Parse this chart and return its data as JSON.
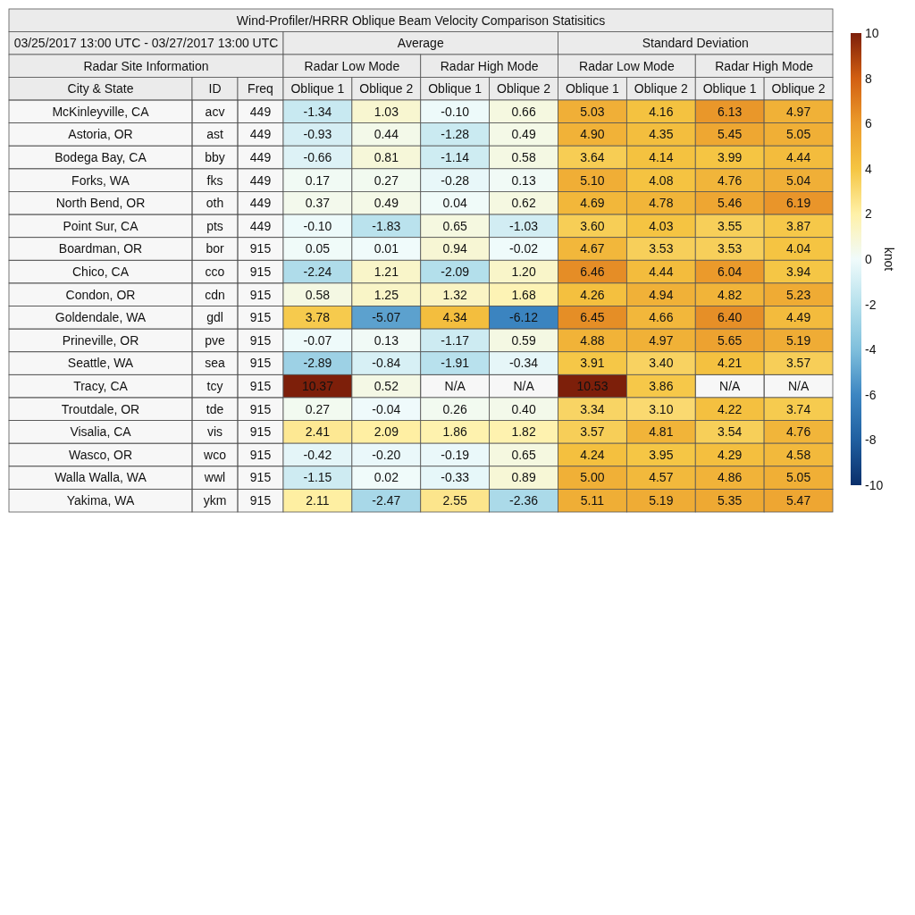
{
  "chart_data": {
    "type": "heatmap",
    "title": "Wind-Profiler/HRRR Oblique Beam Velocity Comparison Statisitics",
    "subtitle": "03/25/2017 13:00 UTC - 03/27/2017 13:00 UTC",
    "annotations": [
      "Radar Site Information",
      "Average",
      "Standard Deviation",
      "Radar Low Mode",
      "Radar High Mode",
      "Radar Low Mode",
      "Radar High Mode",
      "City & State"
    ],
    "categories": [
      "ID",
      "Freq",
      "Oblique 1",
      "Oblique 2",
      "Oblique 1",
      "Oblique 2",
      "Oblique 1",
      "Oblique 2",
      "Oblique 1",
      "Oblique 2"
    ],
    "y_categories": [
      "McKinleyville, CA",
      "Astoria, OR",
      "Bodega Bay, CA",
      "Forks, WA",
      "North Bend, OR",
      "Point Sur, CA",
      "Boardman, OR",
      "Chico, CA",
      "Condon, OR",
      "Goldendale, WA",
      "Prineville, OR",
      "Seattle, WA",
      "Tracy, CA",
      "Troutdale, OR",
      "Visalia, CA",
      "Wasco, OR",
      "Walla Walla, WA",
      "Yakima, WA"
    ],
    "cells": [
      [
        null,
        null,
        -1.34,
        1.03,
        -0.1,
        0.66,
        5.03,
        4.16,
        6.13,
        4.97
      ],
      [
        null,
        null,
        -0.93,
        0.44,
        -1.28,
        0.49,
        4.9,
        4.35,
        5.45,
        5.05
      ],
      [
        null,
        null,
        -0.66,
        0.81,
        -1.14,
        0.58,
        3.64,
        4.14,
        3.99,
        4.44
      ],
      [
        null,
        null,
        0.17,
        0.27,
        -0.28,
        0.13,
        5.1,
        4.08,
        4.76,
        5.04
      ],
      [
        null,
        null,
        0.37,
        0.49,
        0.04,
        0.62,
        4.69,
        4.78,
        5.46,
        6.19
      ],
      [
        null,
        null,
        -0.1,
        -1.83,
        0.65,
        -1.03,
        3.6,
        4.03,
        3.55,
        3.87
      ],
      [
        null,
        null,
        0.05,
        0.01,
        0.94,
        -0.02,
        4.67,
        3.53,
        3.53,
        4.04
      ],
      [
        null,
        null,
        -2.24,
        1.21,
        -2.09,
        1.2,
        6.46,
        4.44,
        6.04,
        3.94
      ],
      [
        null,
        null,
        0.58,
        1.25,
        1.32,
        1.68,
        4.26,
        4.94,
        4.82,
        5.23
      ],
      [
        null,
        null,
        3.78,
        -5.07,
        4.34,
        -6.12,
        6.45,
        4.66,
        6.4,
        4.49
      ],
      [
        null,
        null,
        -0.07,
        0.13,
        -1.17,
        0.59,
        4.88,
        4.97,
        5.65,
        5.19
      ],
      [
        null,
        null,
        -2.89,
        -0.84,
        -1.91,
        -0.34,
        3.91,
        3.4,
        4.21,
        3.57
      ],
      [
        null,
        null,
        10.37,
        0.52,
        null,
        null,
        10.53,
        3.86,
        null,
        null
      ],
      [
        null,
        null,
        0.27,
        -0.04,
        0.26,
        0.4,
        3.34,
        3.1,
        4.22,
        3.74
      ],
      [
        null,
        null,
        2.41,
        2.09,
        1.86,
        1.82,
        3.57,
        4.81,
        3.54,
        4.76
      ],
      [
        null,
        null,
        -0.42,
        -0.2,
        -0.19,
        0.65,
        4.24,
        3.95,
        4.29,
        4.58
      ],
      [
        null,
        null,
        -1.15,
        0.02,
        -0.33,
        0.89,
        5.0,
        4.57,
        4.86,
        5.05
      ],
      [
        null,
        null,
        2.11,
        -2.47,
        2.55,
        -2.36,
        5.11,
        5.19,
        5.35,
        5.47
      ]
    ],
    "cell_labels": [
      [
        "acv",
        "449",
        "-1.34",
        "1.03",
        "-0.10",
        "0.66",
        "5.03",
        "4.16",
        "6.13",
        "4.97"
      ],
      [
        "ast",
        "449",
        "-0.93",
        "0.44",
        "-1.28",
        "0.49",
        "4.90",
        "4.35",
        "5.45",
        "5.05"
      ],
      [
        "bby",
        "449",
        "-0.66",
        "0.81",
        "-1.14",
        "0.58",
        "3.64",
        "4.14",
        "3.99",
        "4.44"
      ],
      [
        "fks",
        "449",
        "0.17",
        "0.27",
        "-0.28",
        "0.13",
        "5.10",
        "4.08",
        "4.76",
        "5.04"
      ],
      [
        "oth",
        "449",
        "0.37",
        "0.49",
        "0.04",
        "0.62",
        "4.69",
        "4.78",
        "5.46",
        "6.19"
      ],
      [
        "pts",
        "449",
        "-0.10",
        "-1.83",
        "0.65",
        "-1.03",
        "3.60",
        "4.03",
        "3.55",
        "3.87"
      ],
      [
        "bor",
        "915",
        "0.05",
        "0.01",
        "0.94",
        "-0.02",
        "4.67",
        "3.53",
        "3.53",
        "4.04"
      ],
      [
        "cco",
        "915",
        "-2.24",
        "1.21",
        "-2.09",
        "1.20",
        "6.46",
        "4.44",
        "6.04",
        "3.94"
      ],
      [
        "cdn",
        "915",
        "0.58",
        "1.25",
        "1.32",
        "1.68",
        "4.26",
        "4.94",
        "4.82",
        "5.23"
      ],
      [
        "gdl",
        "915",
        "3.78",
        "-5.07",
        "4.34",
        "-6.12",
        "6.45",
        "4.66",
        "6.40",
        "4.49"
      ],
      [
        "pve",
        "915",
        "-0.07",
        "0.13",
        "-1.17",
        "0.59",
        "4.88",
        "4.97",
        "5.65",
        "5.19"
      ],
      [
        "sea",
        "915",
        "-2.89",
        "-0.84",
        "-1.91",
        "-0.34",
        "3.91",
        "3.40",
        "4.21",
        "3.57"
      ],
      [
        "tcy",
        "915",
        "10.37",
        "0.52",
        "N/A",
        "N/A",
        "10.53",
        "3.86",
        "N/A",
        "N/A"
      ],
      [
        "tde",
        "915",
        "0.27",
        "-0.04",
        "0.26",
        "0.40",
        "3.34",
        "3.10",
        "4.22",
        "3.74"
      ],
      [
        "vis",
        "915",
        "2.41",
        "2.09",
        "1.86",
        "1.82",
        "3.57",
        "4.81",
        "3.54",
        "4.76"
      ],
      [
        "wco",
        "915",
        "-0.42",
        "-0.20",
        "-0.19",
        "0.65",
        "4.24",
        "3.95",
        "4.29",
        "4.58"
      ],
      [
        "wwl",
        "915",
        "-1.15",
        "0.02",
        "-0.33",
        "0.89",
        "5.00",
        "4.57",
        "4.86",
        "5.05"
      ],
      [
        "ykm",
        "915",
        "2.11",
        "-2.47",
        "2.55",
        "-2.36",
        "5.11",
        "5.19",
        "5.35",
        "5.47"
      ]
    ],
    "clabel": "knot",
    "clim": [
      -10,
      10
    ],
    "cticks": [
      -10,
      -8,
      -6,
      -4,
      -2,
      0,
      2,
      4,
      6,
      8,
      10
    ]
  }
}
